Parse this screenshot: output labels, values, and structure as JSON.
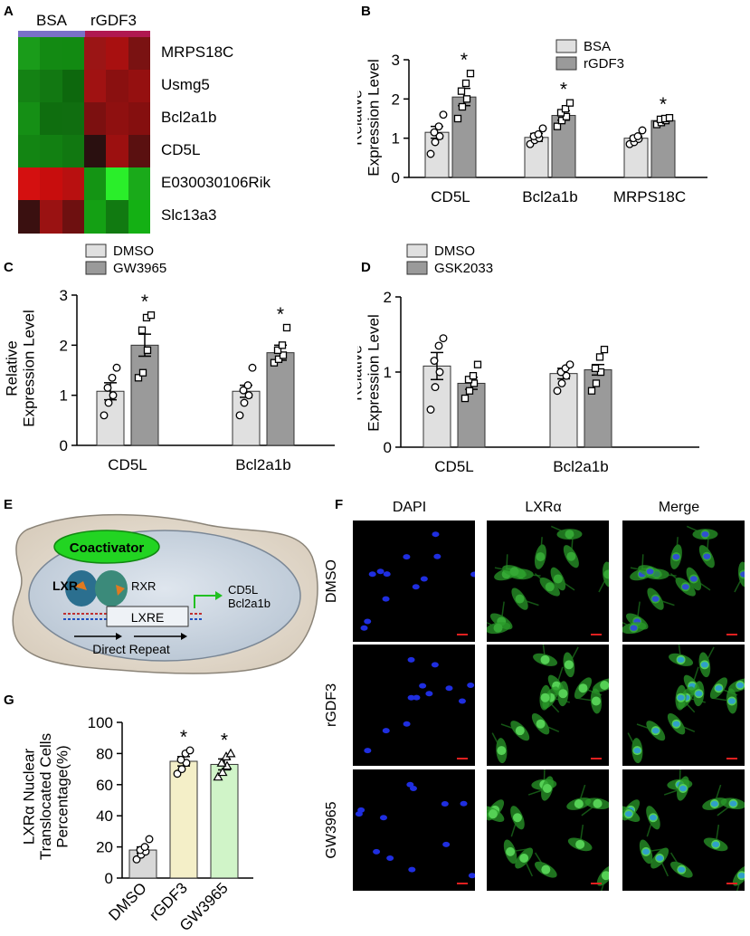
{
  "panels": {
    "A": "A",
    "B": "B",
    "C": "C",
    "D": "D",
    "E": "E",
    "F": "F",
    "G": "G"
  },
  "heatmap": {
    "group_labels": [
      "BSA",
      "rGDF3"
    ],
    "group_colors": [
      "#7a70c8",
      "#b01850"
    ],
    "genes": [
      "MRPS18C",
      "Usmg5",
      "Bcl2a1b",
      "CD5L",
      "E030030106Rik",
      "Slc13a3"
    ],
    "cells": [
      [
        "#1a9c1a",
        "#138a13",
        "#128a12",
        "#9b1515",
        "#a81010",
        "#7a1212"
      ],
      [
        "#148214",
        "#127812",
        "#0d680d",
        "#a01212",
        "#8a1010",
        "#951010"
      ],
      [
        "#158f15",
        "#0f6e0f",
        "#106e10",
        "#7c1010",
        "#8f1010",
        "#850f0f"
      ],
      [
        "#138513",
        "#128012",
        "#117811",
        "#2a1010",
        "#9c1010",
        "#5a1010"
      ],
      [
        "#d41010",
        "#c80d0d",
        "#b81010",
        "#149414",
        "#2aee2a",
        "#1aaa1a"
      ],
      [
        "#3a1010",
        "#9a1212",
        "#6e1010",
        "#14a014",
        "#117a11",
        "#14b014"
      ]
    ]
  },
  "charts": {
    "B": {
      "type": "bar",
      "categories": [
        "CD5L",
        "Bcl2a1b",
        "MRPS18C"
      ],
      "series": [
        {
          "name": "BSA",
          "values": [
            1.15,
            1.02,
            1.0
          ]
        },
        {
          "name": "rGDF3",
          "values": [
            2.05,
            1.58,
            1.45
          ]
        }
      ],
      "errors": [
        [
          0.15,
          0.1,
          0.05
        ],
        [
          0.22,
          0.12,
          0.05
        ]
      ],
      "points": [
        [
          [
            0.6,
            0.9,
            1.05,
            1.15,
            1.3,
            1.6
          ],
          [
            1.5,
            1.8,
            2.0,
            2.2,
            2.4,
            2.65
          ]
        ],
        [
          [
            0.85,
            0.95,
            1.0,
            1.05,
            1.1,
            1.25
          ],
          [
            1.3,
            1.45,
            1.55,
            1.65,
            1.75,
            1.9
          ]
        ],
        [
          [
            0.85,
            0.9,
            0.98,
            1.0,
            1.05,
            1.2
          ],
          [
            1.35,
            1.4,
            1.45,
            1.48,
            1.5,
            1.52
          ]
        ]
      ],
      "significance": [
        "*",
        "*",
        "*"
      ],
      "ylabel": "Relative\nExpression Level",
      "yticks": [
        "0",
        "1",
        "2",
        "3"
      ],
      "ylim": [
        0,
        3
      ],
      "legend_position": "top-right",
      "colors": [
        "#e0e0e0",
        "#9a9a9a"
      ]
    },
    "C": {
      "type": "bar",
      "categories": [
        "CD5L",
        "Bcl2a1b"
      ],
      "series": [
        {
          "name": "DMSO",
          "values": [
            1.08,
            1.08
          ]
        },
        {
          "name": "GW3965",
          "values": [
            2.0,
            1.85
          ]
        }
      ],
      "errors": [
        [
          0.17,
          0.12
        ],
        [
          0.22,
          0.15
        ]
      ],
      "points": [
        [
          [
            0.6,
            0.85,
            1.0,
            1.15,
            1.35,
            1.55
          ],
          [
            1.35,
            1.45,
            1.9,
            2.3,
            2.55,
            2.6
          ]
        ],
        [
          [
            0.6,
            0.85,
            1.0,
            1.1,
            1.2,
            1.55
          ],
          [
            1.65,
            1.72,
            1.8,
            1.9,
            2.0,
            2.35
          ]
        ]
      ],
      "significance": [
        "*",
        "*"
      ],
      "ylabel": "Relative\nExpression Level",
      "yticks": [
        "0",
        "1",
        "2",
        "3"
      ],
      "ylim": [
        0,
        3
      ],
      "legend_position": "top-left",
      "colors": [
        "#e0e0e0",
        "#9a9a9a"
      ]
    },
    "D": {
      "type": "bar",
      "categories": [
        "CD5L",
        "Bcl2a1b"
      ],
      "series": [
        {
          "name": "DMSO",
          "values": [
            1.08,
            0.98
          ]
        },
        {
          "name": "GSK2033",
          "values": [
            0.85,
            1.03
          ]
        }
      ],
      "errors": [
        [
          0.18,
          0.07
        ],
        [
          0.08,
          0.07
        ]
      ],
      "points": [
        [
          [
            0.5,
            0.8,
            1.0,
            1.15,
            1.35,
            1.45
          ],
          [
            0.65,
            0.75,
            0.85,
            0.9,
            0.95,
            1.1
          ]
        ],
        [
          [
            0.75,
            0.85,
            0.95,
            1.0,
            1.05,
            1.1
          ],
          [
            0.75,
            0.85,
            1.0,
            1.05,
            1.2,
            1.3
          ]
        ]
      ],
      "significance": [
        "",
        ""
      ],
      "ylabel": "Relative\nExpression Level",
      "yticks": [
        "0",
        "1",
        "2"
      ],
      "ylim": [
        0,
        2
      ],
      "legend_position": "top-left",
      "colors": [
        "#e0e0e0",
        "#9a9a9a"
      ]
    },
    "G": {
      "type": "bar",
      "categories": [
        "DMSO",
        "rGDF3",
        "GW3965"
      ],
      "values": [
        18,
        75,
        73
      ],
      "errors": [
        2,
        3,
        3.5
      ],
      "points": [
        [
          12,
          15,
          17,
          18,
          20,
          25
        ],
        [
          67,
          70,
          74,
          76,
          80,
          82
        ],
        [
          65,
          68,
          72,
          74,
          78,
          80
        ]
      ],
      "significance": [
        "",
        "*",
        "*"
      ],
      "ylabel": "LXRα Nuclear\nTranslocated Cells\nPercentage(%)",
      "yticks": [
        "0",
        "20",
        "40",
        "60",
        "80",
        "100"
      ],
      "ylim": [
        0,
        100
      ],
      "colors": [
        "#d8d8d8",
        "#f4efc8",
        "#d0f4c8"
      ]
    }
  },
  "diagram": {
    "coactivator": "Coactivator",
    "lxr": "LXR",
    "rxr": "RXR",
    "lxre": "LXRE",
    "target_genes": "CD5L\nBcl2a1b",
    "direct_repeat": "Direct Repeat"
  },
  "micrographs": {
    "columns": [
      "DAPI",
      "LXRα",
      "Merge"
    ],
    "rows": [
      "DMSO",
      "rGDF3",
      "GW3965"
    ]
  }
}
